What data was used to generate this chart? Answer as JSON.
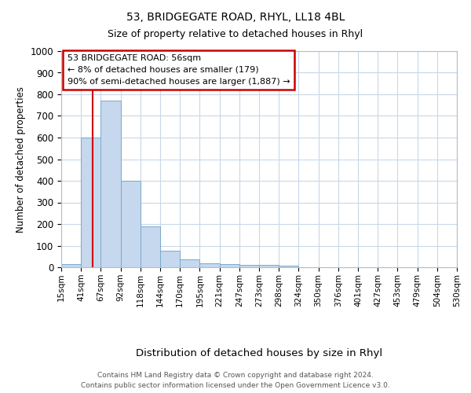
{
  "title1": "53, BRIDGEGATE ROAD, RHYL, LL18 4BL",
  "title2": "Size of property relative to detached houses in Rhyl",
  "xlabel": "Distribution of detached houses by size in Rhyl",
  "ylabel": "Number of detached properties",
  "bins": [
    "15sqm",
    "41sqm",
    "67sqm",
    "92sqm",
    "118sqm",
    "144sqm",
    "170sqm",
    "195sqm",
    "221sqm",
    "247sqm",
    "273sqm",
    "298sqm",
    "324sqm",
    "350sqm",
    "376sqm",
    "401sqm",
    "427sqm",
    "453sqm",
    "479sqm",
    "504sqm",
    "530sqm"
  ],
  "values": [
    15,
    600,
    770,
    400,
    190,
    75,
    37,
    18,
    15,
    12,
    10,
    8,
    0,
    0,
    0,
    0,
    0,
    0,
    0,
    0
  ],
  "bar_color": "#c5d8ee",
  "bar_edge_color": "#7aaacc",
  "red_line_x": 1.577,
  "annotation_text": "53 BRIDGEGATE ROAD: 56sqm\n← 8% of detached houses are smaller (179)\n90% of semi-detached houses are larger (1,887) →",
  "annotation_box_color": "#ffffff",
  "annotation_box_edge_color": "#cc0000",
  "ylim": [
    0,
    1000
  ],
  "yticks": [
    0,
    100,
    200,
    300,
    400,
    500,
    600,
    700,
    800,
    900,
    1000
  ],
  "footer1": "Contains HM Land Registry data © Crown copyright and database right 2024.",
  "footer2": "Contains public sector information licensed under the Open Government Licence v3.0.",
  "background_color": "#ffffff",
  "grid_color": "#c8d8e8"
}
